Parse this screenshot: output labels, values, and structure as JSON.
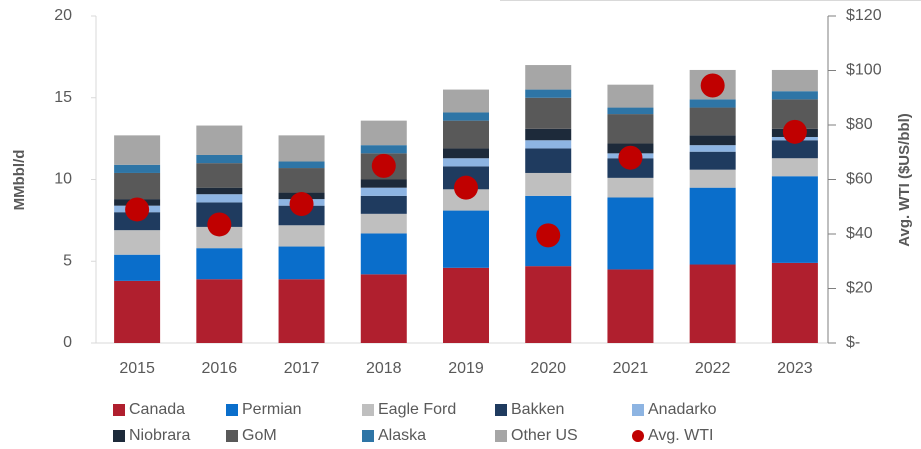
{
  "chart_data": {
    "type": "bar",
    "stacked": true,
    "categories": [
      "2015",
      "2016",
      "2017",
      "2018",
      "2019",
      "2020",
      "2021",
      "2022",
      "2023"
    ],
    "ylabel": "MMbbl/d",
    "y2label": "Avg. WTI ($US/bbl)",
    "ylim": [
      0,
      20
    ],
    "yticks": [
      0,
      5,
      10,
      15,
      20
    ],
    "y2lim": [
      0,
      120
    ],
    "y2ticks": [
      {
        "value": 0,
        "label": "$-"
      },
      {
        "value": 20,
        "label": "$20"
      },
      {
        "value": 40,
        "label": "$40"
      },
      {
        "value": 60,
        "label": "$60"
      },
      {
        "value": 80,
        "label": "$80"
      },
      {
        "value": 100,
        "label": "$100"
      },
      {
        "value": 120,
        "label": "$120"
      }
    ],
    "legend": "bottom",
    "series": [
      {
        "name": "Canada",
        "color": "#b01f2e",
        "values": [
          3.8,
          3.9,
          3.9,
          4.2,
          4.6,
          4.7,
          4.5,
          4.8,
          4.9
        ]
      },
      {
        "name": "Permian",
        "color": "#0a6ecb",
        "values": [
          1.6,
          1.9,
          2.0,
          2.5,
          3.5,
          4.3,
          4.4,
          4.7,
          5.3
        ]
      },
      {
        "name": "Eagle Ford",
        "color": "#bfbfbf",
        "values": [
          1.5,
          1.3,
          1.3,
          1.2,
          1.3,
          1.4,
          1.2,
          1.1,
          1.1
        ]
      },
      {
        "name": "Bakken",
        "color": "#1f3b5f",
        "values": [
          1.1,
          1.5,
          1.2,
          1.1,
          1.4,
          1.5,
          1.2,
          1.1,
          1.1
        ]
      },
      {
        "name": "Anadarko",
        "color": "#8db4e2",
        "values": [
          0.4,
          0.5,
          0.4,
          0.5,
          0.5,
          0.5,
          0.3,
          0.4,
          0.2
        ]
      },
      {
        "name": "Niobrara",
        "color": "#1d2a3a",
        "values": [
          0.4,
          0.4,
          0.4,
          0.5,
          0.6,
          0.7,
          0.6,
          0.6,
          0.5
        ]
      },
      {
        "name": "GoM",
        "color": "#595959",
        "values": [
          1.6,
          1.5,
          1.5,
          1.6,
          1.7,
          1.9,
          1.8,
          1.7,
          1.8
        ]
      },
      {
        "name": "Alaska",
        "color": "#2e75a6",
        "values": [
          0.5,
          0.5,
          0.4,
          0.5,
          0.5,
          0.5,
          0.4,
          0.5,
          0.5
        ]
      },
      {
        "name": "Other US",
        "color": "#a6a6a6",
        "values": [
          1.8,
          1.8,
          1.6,
          1.5,
          1.4,
          1.5,
          1.4,
          1.8,
          1.3
        ]
      },
      {
        "name": "Avg. WTI",
        "color": "#c00000",
        "type": "scatter",
        "axis": "y2",
        "values": [
          49,
          43.5,
          51,
          65,
          57,
          39.5,
          68,
          94.5,
          77.5
        ]
      }
    ]
  }
}
